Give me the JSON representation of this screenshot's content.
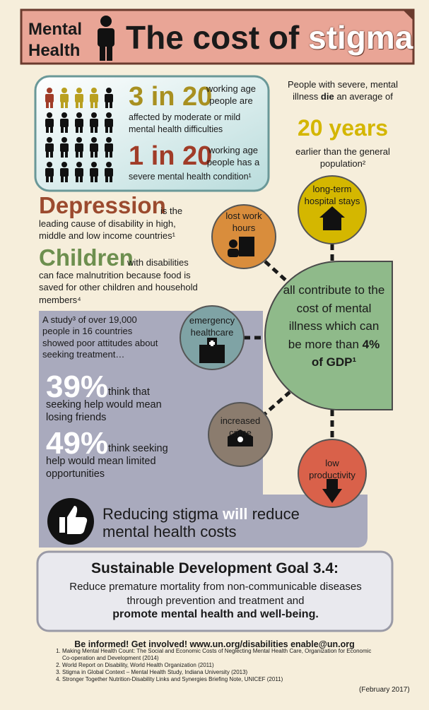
{
  "header": {
    "mental": "Mental",
    "health": "Health",
    "title": "The cost of",
    "highlight": "stigma"
  },
  "stats": {
    "big1": "3 in 20",
    "side1": "working age people are",
    "line1": "affected by  moderate or mild mental health difficulties",
    "big2": "1 in 20",
    "side2": "working age people has a",
    "line2": "severe mental health condition¹"
  },
  "lifespan": {
    "before": "People with severe, mental illness",
    "bold": "die",
    "after": "an average of",
    "big": "20 years",
    "end": "earlier than the general population²"
  },
  "depression": {
    "word": "Depression",
    "text": "is the leading cause of disability in high, middle and low income countries¹"
  },
  "children": {
    "word": "Children",
    "text": "with disabilities can face malnutrition because food is saved for other children and household members⁴"
  },
  "study": {
    "intro": "A study³ of over 19,000 people in 16 countries showed poor attitudes about seeking treatment…",
    "stat1": "39%",
    "text1": "think that seeking help would mean losing friends",
    "stat2": "49%",
    "text2": "think seeking help would mean limited opportunities"
  },
  "reducing": {
    "before": "Reducing stigma",
    "bold": "will",
    "after": "reduce mental health costs"
  },
  "factors": {
    "lost_work": "lost work hours",
    "hospital": "long-term hospital stays",
    "emergency": "emergency healthcare",
    "crime": "increased crime",
    "productivity": "low productivity"
  },
  "center": {
    "text": "all contribute to the cost of mental illness which can be more than",
    "bold": "4% of GDP¹"
  },
  "sdg": {
    "title": "Sustainable Development Goal 3.4:",
    "text": "Reduce premature mortality from non-communicable diseases through prevention and treatment and",
    "bold": "promote mental health and well-being."
  },
  "footer": {
    "cta": "Be informed! Get involved! www.un.org/disabilities enable@un.org",
    "references": [
      "Making Mental Health Count: The Social and Economic Costs of Neglecting Mental Health Care, Organization for Economic Co-operation and Development (2014)",
      "World Report on Disability, World Health Organization (2011)",
      "Stigma in Global Context – Mental Health Study, Indiana University (2013)",
      "Stronger Together Nutrition-Disability Links and Synergies Briefing Note, UNICEF (2011)"
    ],
    "date": "(February 2017)"
  }
}
